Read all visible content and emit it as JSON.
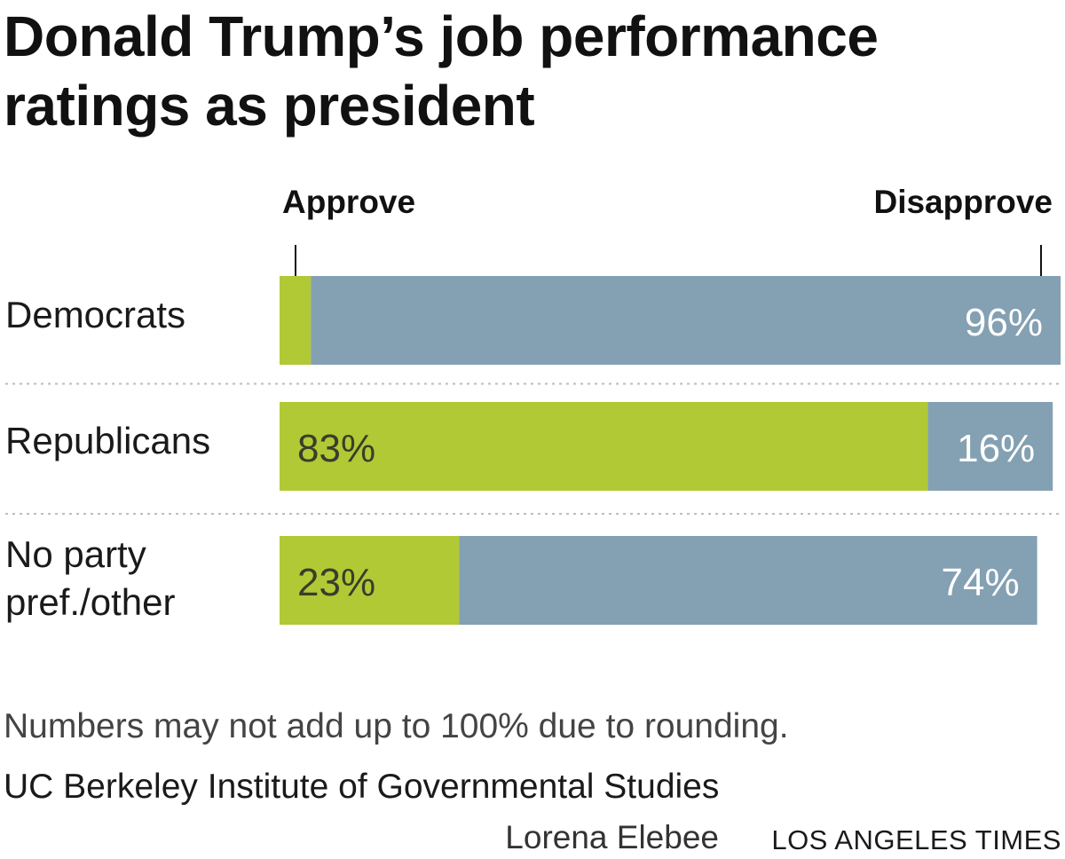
{
  "chart_data": {
    "type": "bar",
    "orientation": "horizontal",
    "stacked": true,
    "title": "Donald Trump’s job performance ratings as president",
    "categories": [
      "Democrats",
      "Republicans",
      "No party pref./other"
    ],
    "category_lines": [
      [
        "Democrats"
      ],
      [
        "Republicans"
      ],
      [
        "No party",
        "pref./other"
      ]
    ],
    "series": [
      {
        "name": "Approve",
        "color": "#b1c935",
        "label_color": "#3a3d2a",
        "values": [
          4,
          83,
          23
        ],
        "labels": [
          "",
          "83%",
          "23%"
        ]
      },
      {
        "name": "Disapprove",
        "color": "#84a0b3",
        "label_color": "#ffffff",
        "values": [
          96,
          16,
          74
        ],
        "labels": [
          "96%",
          "16%",
          "74%"
        ]
      }
    ],
    "xlim": [
      0,
      100
    ],
    "xlabel": "",
    "ylabel": "",
    "grid": false,
    "legend_position": "top",
    "note": "Numbers may not add up to 100% due to rounding.",
    "source": "UC Berkeley Institute of Governmental Studies",
    "byline": "Lorena Elebee",
    "outlet": "LOS ANGELES TIMES"
  }
}
